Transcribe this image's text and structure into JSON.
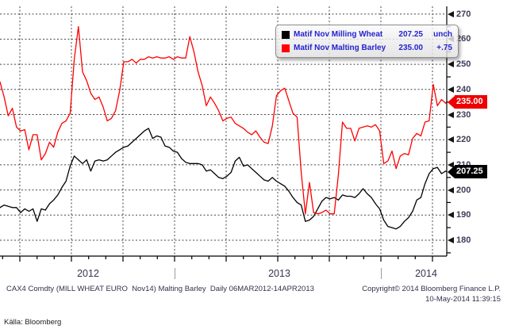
{
  "legend": {
    "items": [
      {
        "label": "Matif Nov Milling Wheat",
        "value": "207.25",
        "change": "unch",
        "swatch": "#000000"
      },
      {
        "label": "Matif Nov Malting Barley",
        "value": "235.00",
        "change": "+.75",
        "swatch": "#ff0000"
      }
    ],
    "text_color": "#2424cf"
  },
  "price_badges": [
    {
      "text": "235.00",
      "price": 235.0,
      "bg": "#ee0000"
    },
    {
      "text": "207.25",
      "price": 207.25,
      "bg": "#000000"
    }
  ],
  "footer": {
    "description": "CAX4 Comdty (MILL WHEAT EURO  Nov14) Malting Barley  Daily 06MAR2012-14APR2013",
    "copyright": "Copyright© 2014 Bloomberg Finance L.P.",
    "timestamp": "10-May-2014 11:39:15",
    "source": "Källa: Bloomberg"
  },
  "chart_data": {
    "type": "line",
    "title": "",
    "xlabel": "",
    "ylabel": "",
    "grid": "dashed",
    "legend_position": "top-right",
    "y_ticks": [
      180,
      190,
      200,
      210,
      220,
      230,
      240,
      250,
      260,
      270
    ],
    "y_minor_step": 5,
    "y_range": [
      173,
      272
    ],
    "x_range_years": [
      2012.154,
      2014.312
    ],
    "x_year_labels": [
      "2012",
      "2013",
      "2014"
    ],
    "x_gridlines": "quarterly",
    "x_minor_ticks": "monthly",
    "series": [
      {
        "name": "Matif Nov Milling Wheat",
        "color": "#000000",
        "last_price": 207.25,
        "change": "unch",
        "x_start": 2012.154,
        "x_step": 0.02,
        "values": [
          193,
          194,
          193.5,
          193,
          193,
          191,
          192.5,
          191.5,
          192.5,
          187.5,
          192.5,
          192,
          194.5,
          196,
          198,
          201,
          203.5,
          209.5,
          213.5,
          212,
          210.5,
          212,
          207.5,
          211.5,
          212,
          211.5,
          212,
          213.5,
          215,
          216,
          217,
          217.5,
          219,
          220.5,
          222,
          223.5,
          224.5,
          220.5,
          221.5,
          221,
          217.5,
          217,
          215.5,
          215,
          212.5,
          211,
          210.5,
          210.5,
          210.5,
          210,
          207.5,
          208,
          206.5,
          205,
          204.5,
          205.5,
          207,
          211.5,
          213,
          209.5,
          210,
          208.5,
          207,
          205.5,
          204,
          203.5,
          205,
          203.5,
          202.5,
          201.5,
          199.5,
          197,
          195,
          194,
          187.5,
          188,
          189.5,
          192.5,
          195.5,
          197,
          196.5,
          197,
          196,
          198,
          197.5,
          197.5,
          197,
          198.5,
          200.5,
          198.5,
          197,
          194.5,
          192.5,
          188,
          185.5,
          185,
          184.5,
          185.5,
          187.5,
          189,
          191.5,
          196,
          197,
          202.5,
          206.5,
          208.5,
          209,
          206.5,
          207.5
        ]
      },
      {
        "name": "Matif Nov Malting Barley",
        "color": "#ff0000",
        "last_price": 235.0,
        "change": "+.75",
        "x_start": 2012.154,
        "x_step": 0.02,
        "values": [
          243,
          237,
          229.5,
          232.5,
          225,
          223.5,
          224,
          216,
          222,
          222,
          212,
          214.5,
          219,
          217,
          223,
          226.5,
          227.5,
          230.5,
          252,
          265,
          247,
          243.5,
          238.5,
          236,
          237,
          233,
          227.5,
          228.5,
          231.5,
          239.5,
          251,
          251,
          252,
          250.5,
          252,
          252,
          253,
          252.5,
          253,
          252.5,
          252.5,
          253,
          252,
          253,
          252.5,
          252.5,
          261,
          255,
          247,
          241.5,
          233.5,
          237,
          234.5,
          231.5,
          227.5,
          228.5,
          229,
          226.5,
          225.5,
          224.5,
          223,
          222,
          223.5,
          221,
          219,
          218.5,
          225.5,
          237.5,
          239.5,
          240.5,
          235.5,
          230.5,
          229,
          207,
          190.5,
          203,
          191,
          190.5,
          191,
          192,
          190.5,
          190.5,
          206,
          227,
          224.5,
          224.5,
          219.5,
          224.5,
          225,
          225.5,
          225,
          226,
          223.5,
          210.5,
          211.5,
          215.5,
          208.5,
          213.5,
          214.5,
          214,
          220.5,
          222.5,
          221.5,
          227,
          227.5,
          242,
          233.5,
          236,
          234.5
        ]
      }
    ]
  }
}
